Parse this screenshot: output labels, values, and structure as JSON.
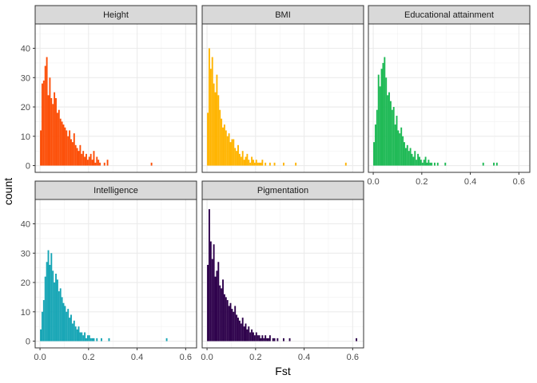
{
  "chart_data": {
    "type": "bar",
    "xlabel": "Fst",
    "ylabel": "count",
    "xlim": [
      -0.02,
      0.645
    ],
    "ylim": [
      -2.3,
      48.3
    ],
    "x_ticks": [
      0.0,
      0.2,
      0.4,
      0.6
    ],
    "x_tick_labels": [
      "0.0",
      "0.2",
      "0.4",
      "0.6"
    ],
    "y_ticks": [
      0,
      10,
      20,
      30,
      40
    ],
    "y_tick_labels": [
      "0",
      "10",
      "20",
      "30",
      "40"
    ],
    "bin_start": 0.0,
    "bin_width": 0.00625,
    "grid": true,
    "legend": "none",
    "panels": [
      {
        "name": "Height",
        "color": "#FC4E07",
        "counts": [
          12,
          28,
          29,
          34,
          37,
          24,
          30,
          23,
          21,
          25,
          23,
          18,
          19,
          16,
          15,
          14,
          13,
          12,
          10,
          12,
          9,
          8,
          11,
          7,
          6,
          5,
          7,
          4,
          5,
          3,
          4,
          2,
          3,
          4,
          2,
          5,
          1,
          3,
          2,
          1,
          0,
          0,
          1,
          0,
          2,
          0,
          0,
          0,
          0,
          0,
          0,
          0,
          0,
          0,
          0,
          0,
          0,
          0,
          0,
          0,
          0,
          0,
          0,
          0,
          0,
          0,
          0,
          0,
          0,
          0,
          0,
          0,
          0,
          1,
          0,
          0,
          0,
          0,
          0,
          0,
          0,
          0,
          0,
          0,
          0,
          0,
          0,
          0,
          0,
          0,
          0,
          0,
          0,
          0,
          0,
          0,
          0,
          0,
          0,
          0
        ]
      },
      {
        "name": "BMI",
        "color": "#FFB400",
        "counts": [
          18,
          40,
          33,
          37,
          28,
          25,
          31,
          24,
          19,
          16,
          13,
          14,
          12,
          10,
          11,
          8,
          9,
          9,
          6,
          5,
          7,
          4,
          3,
          5,
          2,
          3,
          4,
          2,
          1,
          3,
          2,
          1,
          2,
          1,
          1,
          1,
          2,
          0,
          1,
          0,
          0,
          1,
          0,
          0,
          1,
          0,
          0,
          0,
          0,
          0,
          1,
          0,
          0,
          0,
          0,
          0,
          0,
          0,
          1,
          0,
          0,
          0,
          0,
          0,
          0,
          0,
          0,
          0,
          0,
          0,
          0,
          0,
          0,
          0,
          0,
          0,
          0,
          0,
          0,
          0,
          0,
          0,
          0,
          0,
          0,
          0,
          0,
          0,
          0,
          0,
          0,
          1,
          0,
          0,
          0,
          0,
          0,
          0,
          0,
          0
        ]
      },
      {
        "name": "Educational attainment",
        "color": "#1DB954",
        "counts": [
          8,
          14,
          19,
          31,
          27,
          33,
          35,
          37,
          30,
          24,
          25,
          22,
          19,
          20,
          14,
          17,
          12,
          11,
          13,
          10,
          8,
          6,
          7,
          5,
          6,
          4,
          3,
          5,
          2,
          4,
          3,
          2,
          1,
          2,
          3,
          1,
          2,
          1,
          1,
          0,
          1,
          0,
          1,
          0,
          0,
          0,
          0,
          1,
          0,
          0,
          0,
          0,
          0,
          0,
          0,
          0,
          0,
          0,
          0,
          0,
          0,
          0,
          0,
          0,
          0,
          0,
          0,
          0,
          0,
          0,
          0,
          0,
          1,
          0,
          0,
          0,
          0,
          0,
          0,
          1,
          0,
          1,
          0,
          0,
          0,
          0,
          0,
          0,
          0,
          0,
          0,
          0,
          0,
          0,
          0,
          0,
          0,
          0,
          0,
          0
        ]
      },
      {
        "name": "Intelligence",
        "color": "#16A5B5",
        "counts": [
          4,
          10,
          14,
          22,
          27,
          31,
          26,
          30,
          24,
          20,
          23,
          21,
          17,
          18,
          15,
          13,
          12,
          10,
          11,
          8,
          9,
          6,
          7,
          5,
          4,
          5,
          3,
          3,
          2,
          3,
          1,
          2,
          2,
          1,
          1,
          1,
          0,
          1,
          0,
          0,
          1,
          0,
          0,
          0,
          0,
          1,
          0,
          0,
          0,
          0,
          0,
          0,
          0,
          0,
          0,
          0,
          0,
          0,
          0,
          0,
          0,
          0,
          0,
          0,
          0,
          0,
          0,
          0,
          0,
          0,
          0,
          0,
          0,
          0,
          0,
          0,
          0,
          0,
          0,
          0,
          0,
          0,
          0,
          1,
          0,
          0,
          0,
          0,
          0,
          0,
          0,
          0,
          0,
          0,
          0,
          0,
          0,
          0,
          0,
          0
        ]
      },
      {
        "name": "Pigmentation",
        "color": "#2D004B",
        "counts": [
          26,
          45,
          34,
          28,
          33,
          22,
          24,
          27,
          19,
          18,
          21,
          16,
          15,
          14,
          12,
          13,
          11,
          10,
          12,
          9,
          8,
          7,
          6,
          8,
          5,
          6,
          4,
          5,
          3,
          4,
          3,
          2,
          3,
          2,
          2,
          1,
          2,
          1,
          2,
          1,
          1,
          2,
          0,
          1,
          1,
          0,
          1,
          0,
          0,
          0,
          1,
          0,
          0,
          0,
          1,
          0,
          0,
          0,
          0,
          0,
          0,
          0,
          0,
          0,
          0,
          0,
          0,
          0,
          0,
          0,
          0,
          0,
          0,
          0,
          0,
          0,
          0,
          0,
          0,
          0,
          0,
          0,
          0,
          0,
          0,
          0,
          0,
          0,
          0,
          0,
          0,
          0,
          0,
          0,
          0,
          0,
          0,
          0,
          1,
          0
        ]
      }
    ]
  }
}
